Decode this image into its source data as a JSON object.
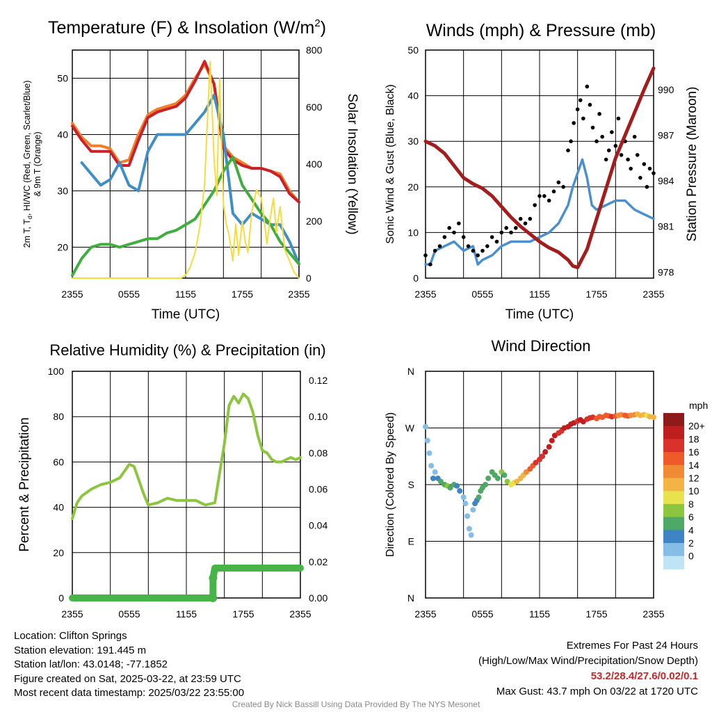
{
  "chart_data": [
    {
      "id": "temp",
      "type": "line",
      "title": "Temperature (F) & Insolation (W/m",
      "title_sup": "2",
      "title_end": ")",
      "xlabel": "Time (UTC)",
      "ylabel_lines": [
        "2m T, T",
        "d",
        ", HI/WC (Red, Green, Scarlet/Blue)",
        "& 9m T (Orange)"
      ],
      "y2label": "Solar Insolation (Yellow)",
      "xticks": [
        "2355",
        "0555",
        "1155",
        "1755",
        "2355"
      ],
      "xlim": [
        0,
        24
      ],
      "ylim": [
        14.5,
        55
      ],
      "yticks": [
        20,
        30,
        40,
        50
      ],
      "y2lim": [
        0,
        800
      ],
      "y2ticks": [
        0,
        200,
        400,
        600,
        800
      ],
      "series": [
        {
          "color": "#f07f2a",
          "axis": "left",
          "x": [
            0,
            1,
            2,
            3,
            4,
            5,
            6,
            7,
            8,
            9,
            10,
            11,
            12,
            13,
            14,
            15,
            16,
            17,
            18,
            19,
            20,
            21,
            22,
            23,
            24
          ],
          "y": [
            42,
            39.5,
            38,
            38,
            37.5,
            35,
            35.5,
            40,
            43.5,
            44.5,
            45,
            45.5,
            47,
            50,
            52.5,
            49,
            38,
            36,
            35,
            34,
            34,
            33.5,
            33,
            30,
            28
          ]
        },
        {
          "color": "#c9202a",
          "axis": "left",
          "x": [
            0,
            1,
            2,
            3,
            4,
            5,
            6,
            7,
            8,
            9,
            10,
            11,
            12,
            13,
            14,
            15,
            16,
            17,
            18,
            19,
            20,
            21,
            22,
            23,
            24
          ],
          "y": [
            41.5,
            39,
            37,
            37,
            37,
            34.5,
            34.5,
            39,
            43,
            44,
            44.5,
            45,
            46.5,
            49.5,
            53,
            49,
            37.5,
            35.5,
            34.5,
            34,
            34,
            33.5,
            32.5,
            29.5,
            28
          ]
        },
        {
          "color": "#3f8ec8",
          "axis": "left",
          "x": [
            1,
            2,
            3,
            4,
            5,
            6,
            7,
            8,
            9,
            10,
            11,
            12,
            13,
            14,
            15,
            16,
            17,
            18,
            19,
            20,
            21,
            22,
            23,
            24
          ],
          "y": [
            35,
            33,
            31,
            32,
            35,
            31,
            30,
            37,
            40,
            40,
            40,
            40,
            42,
            44,
            47,
            40,
            26,
            24,
            26,
            25,
            24,
            24,
            21,
            17
          ]
        },
        {
          "color": "#3fae3f",
          "axis": "left",
          "x": [
            0,
            1,
            2,
            3,
            4,
            5,
            6,
            7,
            8,
            9,
            10,
            11,
            12,
            13,
            14,
            15,
            16,
            17,
            18,
            19,
            20,
            21,
            22,
            23,
            24
          ],
          "y": [
            15,
            18,
            20,
            20.5,
            20.5,
            20,
            20.5,
            21,
            21.5,
            21.5,
            22.5,
            23,
            24,
            25,
            27.5,
            30,
            33.5,
            36,
            31,
            28.5,
            26,
            24,
            21,
            19,
            17
          ]
        },
        {
          "color": "#f5dc3a",
          "axis": "right",
          "x": [
            0,
            6,
            10,
            11.5,
            12,
            12.5,
            13,
            13.5,
            14,
            14.3,
            14.6,
            15,
            15.3,
            15.6,
            16,
            16.3,
            16.6,
            17,
            17.3,
            17.6,
            18,
            18.3,
            18.6,
            19,
            19.5,
            20,
            20.3,
            20.6,
            21,
            21.3,
            21.6,
            22,
            22.5,
            23,
            23.5,
            24
          ],
          "y": [
            0,
            0,
            0,
            0,
            10,
            40,
            90,
            180,
            330,
            550,
            760,
            420,
            290,
            700,
            260,
            190,
            150,
            60,
            190,
            80,
            200,
            130,
            90,
            230,
            310,
            280,
            210,
            120,
            220,
            280,
            160,
            250,
            100,
            60,
            20,
            0
          ]
        }
      ]
    },
    {
      "id": "winds",
      "type": "line",
      "title": "Winds (mph) & Pressure (mb)",
      "xlabel": "Time (UTC)",
      "ylabel": "Sonic Wind & Gust (Blue, Black)",
      "y2label": "Station Pressure (Maroon)",
      "xticks": [
        "2355",
        "0555",
        "1155",
        "1755",
        "2355"
      ],
      "xlim": [
        0,
        24
      ],
      "ylim": [
        0,
        50
      ],
      "yticks": [
        0,
        10,
        20,
        30,
        40,
        50
      ],
      "y2lim": [
        977.6,
        992.6
      ],
      "y2ticks": [
        978,
        981,
        984,
        987,
        990
      ],
      "series": [
        {
          "name": "Sonic Wind",
          "color": "#4a90d0",
          "axis": "left",
          "x": [
            0,
            0.5,
            1,
            2,
            3,
            4,
            5,
            5.5,
            6,
            7,
            8,
            9,
            10,
            11,
            12,
            13,
            14,
            15,
            15.5,
            16,
            16.5,
            17,
            17.5,
            18,
            19,
            20,
            21,
            22,
            23,
            24
          ],
          "y": [
            3,
            3,
            6,
            7,
            8,
            6,
            7,
            3,
            4,
            5,
            7,
            8,
            8,
            8,
            9,
            10,
            12,
            16,
            20,
            23,
            26,
            22,
            16,
            15,
            16,
            17,
            17,
            15,
            14,
            13
          ]
        },
        {
          "name": "Gust",
          "color": "#000000",
          "axis": "left",
          "mode": "points",
          "x": [
            0,
            0.5,
            1,
            1.5,
            2,
            2.5,
            3,
            3.5,
            4,
            4.5,
            5,
            5.5,
            6,
            6.5,
            7,
            7.5,
            8,
            8.5,
            9,
            9.5,
            10,
            10.5,
            11,
            11.5,
            12,
            12.5,
            13,
            13.5,
            14,
            14.5,
            15,
            15.3,
            15.6,
            16,
            16.3,
            16.6,
            17,
            17.3,
            17.6,
            18,
            18.3,
            18.6,
            19,
            19.3,
            19.6,
            20,
            20.3,
            20.6,
            21,
            21.3,
            21.6,
            22,
            22.3,
            22.6,
            23,
            23.3,
            23.6,
            24
          ],
          "y": [
            5,
            3,
            6,
            7,
            9,
            11,
            10,
            12,
            9,
            7,
            6,
            5,
            6,
            7,
            9,
            8,
            10,
            11,
            10,
            11,
            13,
            12,
            13,
            16,
            18,
            18,
            17,
            19,
            21,
            20,
            28,
            30,
            34,
            37,
            39,
            35,
            42,
            38,
            33,
            30,
            36,
            31,
            26,
            28,
            32,
            29,
            35,
            27,
            30,
            26,
            24,
            31,
            27,
            22,
            25,
            20,
            24,
            23
          ]
        },
        {
          "name": "Station Pressure",
          "color": "#a31d1d",
          "axis": "right",
          "x": [
            0,
            1,
            2,
            3,
            4,
            5,
            6,
            7,
            8,
            9,
            10,
            11,
            12,
            13,
            14,
            15,
            15.5,
            16,
            17,
            18,
            19,
            20,
            21,
            22,
            23,
            24
          ],
          "y": [
            986.6,
            986.3,
            985.8,
            985.0,
            984.2,
            983.8,
            983.5,
            983.0,
            982.3,
            981.6,
            981.0,
            980.5,
            980.0,
            979.6,
            979.3,
            978.8,
            978.4,
            978.3,
            979.5,
            981.5,
            983.5,
            985.5,
            987.0,
            988.5,
            990.0,
            991.4
          ]
        }
      ]
    },
    {
      "id": "rh",
      "type": "line",
      "title": "Relative Humidity (%) & Precipitation (in)",
      "ylabel": "Percent & Precipitation",
      "xticks": [
        "2355",
        "0555",
        "1155",
        "1755",
        "2355"
      ],
      "xlim": [
        0,
        24
      ],
      "ylim": [
        0,
        100
      ],
      "yticks": [
        0,
        20,
        40,
        60,
        80,
        100
      ],
      "y2lim": [
        0,
        0.125
      ],
      "y2ticks": [
        "0.00",
        "0.02",
        "0.04",
        "0.06",
        "0.08",
        "0.10",
        "0.12"
      ],
      "series": [
        {
          "name": "Relative Humidity",
          "color": "#8cc63f",
          "axis": "left",
          "x": [
            0,
            0.5,
            1,
            2,
            3,
            4,
            5,
            5.5,
            6,
            6.5,
            7,
            7.5,
            8,
            9,
            10,
            11,
            12,
            13,
            14,
            15,
            15.5,
            16,
            16.5,
            17,
            17.5,
            18,
            18.5,
            19,
            19.5,
            20,
            20.5,
            21,
            21.5,
            22,
            22.5,
            23,
            23.5,
            24
          ],
          "y": [
            35,
            42,
            45,
            48,
            50,
            51,
            53,
            56,
            59,
            58,
            52,
            46,
            41,
            42,
            44,
            43,
            43,
            43,
            41,
            42,
            55,
            68,
            85,
            89,
            86,
            90,
            88,
            82,
            72,
            65,
            64,
            61,
            60,
            60,
            61,
            62,
            61,
            62
          ]
        },
        {
          "name": "Precipitation",
          "color": "#46b446",
          "axis": "right",
          "x": [
            0,
            14.8,
            14.81,
            15,
            24
          ],
          "y": [
            0,
            0,
            0.011,
            0.0165,
            0.0165
          ]
        }
      ]
    },
    {
      "id": "dir",
      "type": "scatter",
      "title": "Wind Direction",
      "ylabel": "Direction (Colored By Speed)",
      "xticks": [
        "2355",
        "0555",
        "1155",
        "1755",
        "2355"
      ],
      "xlim": [
        0,
        24
      ],
      "ylim": [
        0,
        360
      ],
      "ytick_labels": [
        "N",
        "E",
        "S",
        "W",
        "N"
      ],
      "legend_title": "mph",
      "legend_labels": [
        "20+",
        "18",
        "16",
        "14",
        "12",
        "10",
        "8",
        "6",
        "4",
        "2",
        "0"
      ],
      "legend_colors": [
        "#8e1a1a",
        "#bf1e1e",
        "#d9322b",
        "#ee5a2a",
        "#f08a35",
        "#f3b444",
        "#e6e34f",
        "#8cc63f",
        "#4ea866",
        "#3f84c4",
        "#86bde6",
        "#bfe4f6"
      ],
      "points": {
        "x": [
          0,
          0.2,
          0.4,
          0.6,
          0.8,
          1,
          1.3,
          1.6,
          2,
          2.3,
          2.6,
          3,
          3.3,
          3.6,
          4,
          4.2,
          4.4,
          4.6,
          4.8,
          5,
          5.2,
          5.4,
          5.6,
          5.8,
          6,
          6.3,
          6.6,
          7,
          7.3,
          7.6,
          8,
          8.3,
          8.6,
          9,
          9.3,
          9.6,
          10,
          10.3,
          10.6,
          11,
          11.3,
          11.6,
          12,
          12.3,
          12.6,
          13,
          13.3,
          13.6,
          14,
          14.3,
          14.6,
          15,
          15.3,
          15.6,
          16,
          16.3,
          16.6,
          17,
          17.3,
          17.6,
          18,
          18.3,
          18.6,
          19,
          19.3,
          19.6,
          20,
          20.3,
          20.6,
          21,
          21.3,
          21.6,
          22,
          22.3,
          22.6,
          23,
          23.3,
          23.6,
          24
        ],
        "y": [
          272,
          250,
          230,
          210,
          190,
          200,
          190,
          185,
          180,
          178,
          175,
          180,
          178,
          170,
          160,
          150,
          130,
          110,
          100,
          140,
          150,
          155,
          160,
          170,
          175,
          180,
          190,
          200,
          195,
          190,
          200,
          195,
          185,
          180,
          183,
          185,
          190,
          195,
          200,
          205,
          210,
          215,
          220,
          225,
          232,
          240,
          250,
          258,
          262,
          265,
          270,
          272,
          276,
          278,
          281,
          283,
          280,
          284,
          286,
          287,
          285,
          288,
          287,
          290,
          289,
          288,
          289,
          290,
          291,
          290,
          289,
          290,
          291,
          292,
          290,
          291,
          290,
          288,
          287
        ],
        "speed": [
          3,
          2,
          2,
          3,
          4,
          3,
          5,
          6,
          7,
          8,
          7,
          6,
          5,
          4,
          3,
          3,
          2,
          2,
          2,
          3,
          4,
          5,
          6,
          6,
          7,
          7,
          6,
          6,
          7,
          7,
          8,
          7,
          8,
          10,
          11,
          12,
          13,
          13,
          14,
          16,
          17,
          18,
          19,
          19,
          20,
          20,
          20,
          20,
          19,
          19,
          20,
          20,
          20,
          20,
          19,
          20,
          20,
          18,
          18,
          19,
          17,
          17,
          16,
          16,
          17,
          18,
          16,
          14,
          15,
          16,
          17,
          15,
          14,
          13,
          12,
          13,
          11,
          12,
          12
        ]
      }
    }
  ],
  "footer": {
    "location": "Location: Clifton Springs",
    "elevation": "Station elevation: 191.445 m",
    "latlon": "Station lat/lon: 43.0148; -77.1852",
    "created": "Figure created on Sat, 2025-03-22, at 23:59 UTC",
    "recent": "Most recent data timestamp: 2025/03/22 23:55:00",
    "extremes_title": "Extremes For Past 24 Hours",
    "extremes_subtitle": "(High/Low/Max Wind/Precipitation/Snow Depth)",
    "extremes_values": "53.2/28.4/27.6/0.02/0.1",
    "max_gust": "Max Gust: 43.7 mph On 03/22 at 1720 UTC",
    "credit": "Created By Nick Bassill Using Data Provided By The NYS Mesonet"
  }
}
